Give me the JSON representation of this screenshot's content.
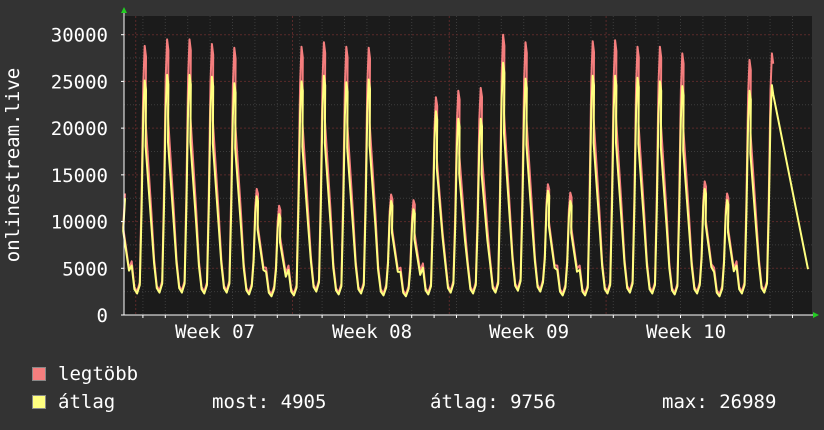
{
  "chart_data": {
    "type": "line",
    "ylabel": "onlinestream.live",
    "ylim": [
      0,
      32000
    ],
    "yticks": [
      0,
      5000,
      10000,
      15000,
      20000,
      25000,
      30000
    ],
    "x_ticks": [
      "Week 07",
      "Week 08",
      "Week 09",
      "Week 10"
    ],
    "grid": true,
    "n_days": 29,
    "series": [
      {
        "name": "legtöbb",
        "color": "#f57e7e",
        "peaks": [
          13000,
          28800,
          29500,
          29500,
          29000,
          28600,
          13500,
          11700,
          28700,
          29200,
          28700,
          28600,
          12900,
          12300,
          23300,
          24000,
          24300,
          30000,
          29200,
          14000,
          13100,
          29300,
          29400,
          28700,
          28700,
          28000,
          14300,
          13000,
          27300,
          28000
        ],
        "troughs": [
          2500,
          2600,
          2600,
          2500,
          2600,
          2400,
          2200,
          2300,
          2700,
          2400,
          2500,
          2300,
          2200,
          2400,
          2600,
          2500,
          2600,
          2800,
          2700,
          2300,
          2300,
          2500,
          2600,
          2500,
          2400,
          2500,
          2200,
          2500,
          2600
        ]
      },
      {
        "name": "átlag",
        "color": "#ffff80",
        "peaks": [
          12500,
          25100,
          25700,
          25700,
          25500,
          24800,
          12700,
          10800,
          25000,
          25600,
          24900,
          25200,
          12200,
          11300,
          21800,
          21000,
          21000,
          26989,
          25300,
          13300,
          12200,
          25600,
          25600,
          25400,
          25000,
          24500,
          13500,
          12300,
          24000,
          24600
        ],
        "troughs": [
          2300,
          2400,
          2400,
          2300,
          2400,
          2200,
          2000,
          2100,
          2500,
          2200,
          2300,
          2100,
          2000,
          2200,
          2400,
          2300,
          2400,
          2600,
          2500,
          2100,
          2100,
          2300,
          2400,
          2300,
          2200,
          2300,
          2000,
          2300,
          2400
        ],
        "last": 4905
      }
    ]
  },
  "legend": [
    {
      "label": "legtöbb",
      "color": "#f57e7e"
    },
    {
      "label": "átlag",
      "color": "#ffff80"
    }
  ],
  "stats": {
    "most": "most: 4905",
    "atlag": "átlag: 9756",
    "max": "max: 26989"
  }
}
